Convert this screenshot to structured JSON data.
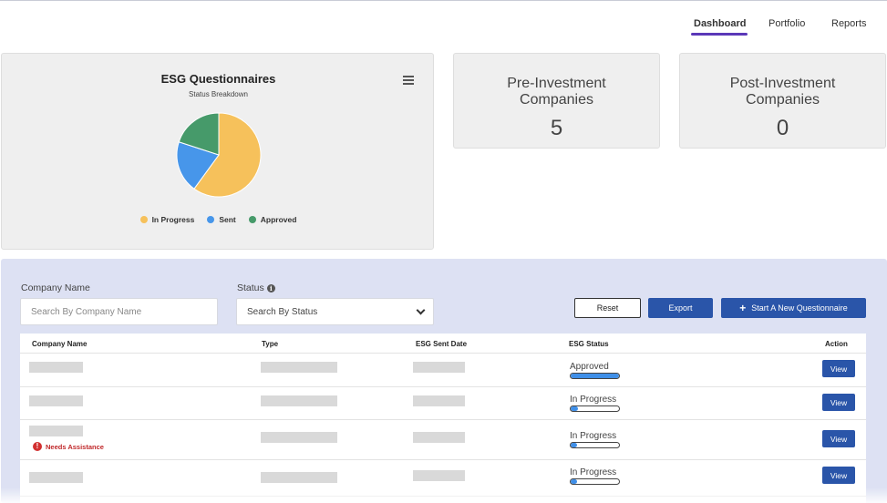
{
  "nav": {
    "tabs": [
      {
        "label": "Dashboard",
        "active": true
      },
      {
        "label": "Portfolio",
        "active": false
      },
      {
        "label": "Reports",
        "active": false
      }
    ],
    "accent_color": "#5b38b8"
  },
  "chart_card": {
    "menu_icon": "hamburger-menu-icon"
  },
  "chart_data": {
    "type": "pie",
    "title": "ESG Questionnaires",
    "subtitle": "Status Breakdown",
    "legend_position": "bottom",
    "slices": [
      {
        "label": "In Progress",
        "value": 60,
        "color": "#f6c15b"
      },
      {
        "label": "Sent",
        "value": 20,
        "color": "#4796ea"
      },
      {
        "label": "Approved",
        "value": 20,
        "color": "#469a6a"
      }
    ]
  },
  "stats": {
    "pre": {
      "label_line1": "Pre-Investment",
      "label_line2": "Companies",
      "value": "5"
    },
    "post": {
      "label_line1": "Post-Investment",
      "label_line2": "Companies",
      "value": "0"
    }
  },
  "filters": {
    "company_label": "Company Name",
    "company_placeholder": "Search By Company Name",
    "status_label": "Status",
    "status_info_icon": "info-icon",
    "status_value": "Search By Status",
    "reset_label": "Reset",
    "export_label": "Export",
    "new_label": "Start A New Questionnaire"
  },
  "table": {
    "headers": {
      "name": "Company Name",
      "type": "Type",
      "date": "ESG Sent Date",
      "status": "ESG Status",
      "action": "Action"
    },
    "rows": [
      {
        "status": "Approved",
        "progress": 1.0,
        "action": "View",
        "needs_assistance": false
      },
      {
        "status": "In Progress",
        "progress": 0.15,
        "action": "View",
        "needs_assistance": false
      },
      {
        "status": "In Progress",
        "progress": 0.1,
        "action": "View",
        "needs_assistance": true,
        "assist_label": "Needs Assistance"
      },
      {
        "status": "In Progress",
        "progress": 0.1,
        "action": "View",
        "needs_assistance": false
      }
    ]
  }
}
